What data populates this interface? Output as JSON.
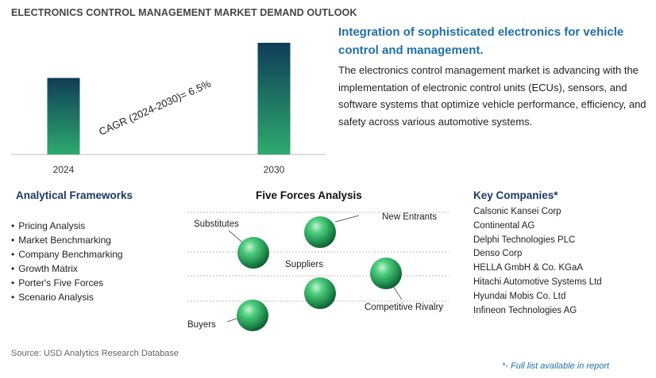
{
  "header": {
    "title": "ELECTRONICS CONTROL MANAGEMENT MARKET DEMAND OUTLOOK"
  },
  "chart_data": {
    "type": "bar",
    "categories": [
      "2024",
      "2030"
    ],
    "values": [
      1.0,
      1.459
    ],
    "annotation": "CAGR (2024-2030)=   6.5%",
    "colors": {
      "bar_top": "#0f3d57",
      "bar_bottom": "#2eaa6e",
      "axis": "#bbbbbb"
    }
  },
  "summary": {
    "headline": "Integration of sophisticated electronics for vehicle control and management.",
    "description": "The electronics control management market is advancing with the implementation of electronic control units (ECUs), sensors, and software systems that optimize vehicle performance, efficiency, and safety across various automotive systems."
  },
  "frameworks": {
    "title": "Analytical Frameworks",
    "items": [
      "Pricing Analysis",
      "Market Benchmarking",
      "Company Benchmarking",
      "Growth Matrix",
      "Porter's Five Forces",
      "Scenario Analysis"
    ]
  },
  "five_forces": {
    "title": "Five Forces Analysis",
    "labels": {
      "substitutes": "Substitutes",
      "new_entrants": "New Entrants",
      "suppliers": "Suppliers",
      "competitive_rivalry": "Competitive Rivalry",
      "buyers": "Buyers"
    }
  },
  "companies": {
    "title": "Key Companies*",
    "items": [
      "Calsonic Kansei Corp",
      "Continental AG",
      "Delphi Technologies PLC",
      "Denso Corp",
      "HELLA GmbH & Co. KGaA",
      "Hitachi Automotive Systems Ltd",
      "Hyundai Mobis Co. Ltd",
      "Infineon Technologies AG"
    ]
  },
  "footer": {
    "source": "Source: USD Analytics Research Database",
    "note": "*- Full list available in report"
  }
}
